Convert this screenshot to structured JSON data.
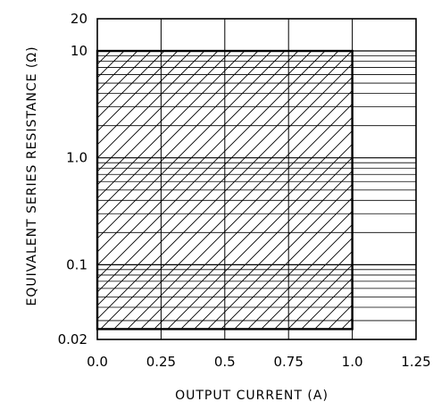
{
  "chart_data": {
    "type": "area",
    "xlabel": "OUTPUT CURRENT (A)",
    "ylabel": "EQUIVALENT SERIES RESISTANCE (Ω)",
    "x_ticks": [
      {
        "value": 0.0,
        "label": "0.0"
      },
      {
        "value": 0.25,
        "label": "0.25"
      },
      {
        "value": 0.5,
        "label": "0.5"
      },
      {
        "value": 0.75,
        "label": "0.75"
      },
      {
        "value": 1.0,
        "label": "1.0"
      },
      {
        "value": 1.25,
        "label": "1.25"
      }
    ],
    "y_ticks": [
      {
        "value": 0.02,
        "label": "0.02"
      },
      {
        "value": 0.1,
        "label": "0.1"
      },
      {
        "value": 1.0,
        "label": "1.0"
      },
      {
        "value": 10,
        "label": "10"
      },
      {
        "value": 20,
        "label": "20"
      }
    ],
    "xlim": [
      0,
      1.25
    ],
    "ylim": [
      0.02,
      20
    ],
    "y_scale": "log",
    "grid": true,
    "stable_region": {
      "x": [
        0,
        1.0
      ],
      "y": [
        0.025,
        10
      ]
    }
  }
}
